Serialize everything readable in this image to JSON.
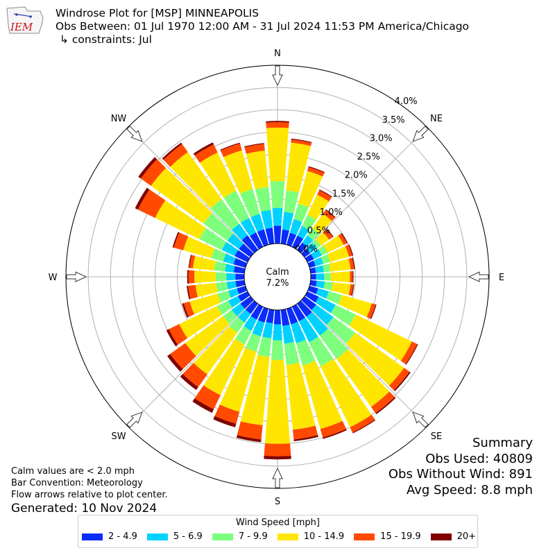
{
  "header": {
    "title": "Windrose Plot for [MSP] MINNEAPOLIS",
    "obs_between": "Obs Between: 01 Jul 1970 12:00 AM - 31 Jul 2024 11:53 PM America/Chicago",
    "constraints": "↳ constraints: Jul",
    "logo_text": "IEM"
  },
  "calm": {
    "label": "Calm",
    "value": "7.2%"
  },
  "compass": {
    "N": "N",
    "NE": "NE",
    "E": "E",
    "SE": "SE",
    "S": "S",
    "SW": "SW",
    "W": "W",
    "NW": "NW"
  },
  "notes": {
    "calm_note": "Calm values are < 2.0 mph",
    "bar_convention": "Bar Convention: Meteorology",
    "flow_note": "Flow arrows relative to plot center.",
    "generated": "Generated: 10 Nov 2024"
  },
  "summary": {
    "title": "Summary",
    "obs_used": "Obs Used: 40809",
    "obs_without_wind": "Obs Without Wind: 891",
    "avg_speed": "Avg Speed: 8.8 mph"
  },
  "chart_data": {
    "type": "windrose",
    "title": "Windrose Plot for [MSP] MINNEAPOLIS",
    "radial_ticks": [
      "0.0%",
      "0.5%",
      "1.0%",
      "1.5%",
      "2.0%",
      "2.5%",
      "3.0%",
      "3.5%",
      "4.0%"
    ],
    "radial_range": [
      0,
      4.0
    ],
    "grid": true,
    "legend_title": "Wind Speed [mph]",
    "legend_placement": "bottom",
    "bins": [
      {
        "label": "2 - 4.9",
        "color": "#0a2cf9"
      },
      {
        "label": "5 - 6.9",
        "color": "#00d2ff"
      },
      {
        "label": "7 - 9.9",
        "color": "#7dff7d"
      },
      {
        "label": "10 - 14.9",
        "color": "#ffe600"
      },
      {
        "label": "15 - 19.9",
        "color": "#ff4a00"
      },
      {
        "label": "20+",
        "color": "#800000"
      }
    ],
    "directions": [
      {
        "dir": 0,
        "cum": [
          0.4,
          0.8,
          1.4,
          2.6,
          2.72,
          2.75
        ]
      },
      {
        "dir": 10,
        "cum": [
          0.32,
          0.72,
          1.2,
          2.28,
          2.35,
          2.37
        ]
      },
      {
        "dir": 20,
        "cum": [
          0.28,
          0.6,
          0.96,
          1.72,
          1.81,
          1.83
        ]
      },
      {
        "dir": 30,
        "cum": [
          0.28,
          0.52,
          0.8,
          1.3,
          1.41,
          1.43
        ]
      },
      {
        "dir": 40,
        "cum": [
          0.2,
          0.4,
          0.6,
          1.0,
          1.1,
          1.12
        ]
      },
      {
        "dir": 50,
        "cum": [
          0.16,
          0.35,
          0.45,
          0.68,
          0.78,
          0.8
        ]
      },
      {
        "dir": 60,
        "cum": [
          0.16,
          0.36,
          0.5,
          0.9,
          0.98,
          1.0
        ]
      },
      {
        "dir": 70,
        "cum": [
          0.14,
          0.32,
          0.48,
          0.92,
          1.0,
          1.02
        ]
      },
      {
        "dir": 80,
        "cum": [
          0.12,
          0.3,
          0.45,
          0.9,
          0.98,
          1.0
        ]
      },
      {
        "dir": 90,
        "cum": [
          0.12,
          0.3,
          0.45,
          0.88,
          0.94,
          0.96
        ]
      },
      {
        "dir": 100,
        "cum": [
          0.14,
          0.32,
          0.5,
          0.9,
          0.96,
          0.98
        ]
      },
      {
        "dir": 110,
        "cum": [
          0.2,
          0.45,
          0.75,
          1.45,
          1.54,
          1.56
        ]
      },
      {
        "dir": 120,
        "cum": [
          0.28,
          0.7,
          1.2,
          2.6,
          2.73,
          2.75
        ]
      },
      {
        "dir": 130,
        "cum": [
          0.32,
          0.8,
          1.4,
          2.75,
          2.9,
          2.93
        ]
      },
      {
        "dir": 140,
        "cum": [
          0.36,
          0.88,
          1.52,
          2.85,
          3.02,
          3.05
        ]
      },
      {
        "dir": 150,
        "cum": [
          0.36,
          0.88,
          1.48,
          3.0,
          3.13,
          3.15
        ]
      },
      {
        "dir": 160,
        "cum": [
          0.36,
          0.8,
          1.32,
          2.8,
          3.0,
          3.03
        ]
      },
      {
        "dir": 170,
        "cum": [
          0.36,
          0.76,
          1.24,
          2.7,
          2.92,
          2.96
        ]
      },
      {
        "dir": 180,
        "cum": [
          0.32,
          0.68,
          1.12,
          3.0,
          3.28,
          3.35
        ]
      },
      {
        "dir": 190,
        "cum": [
          0.3,
          0.64,
          1.06,
          2.6,
          2.92,
          2.98
        ]
      },
      {
        "dir": 200,
        "cum": [
          0.32,
          0.64,
          1.0,
          2.4,
          2.68,
          2.76
        ]
      },
      {
        "dir": 210,
        "cum": [
          0.32,
          0.6,
          0.94,
          2.2,
          2.55,
          2.64
        ]
      },
      {
        "dir": 220,
        "cum": [
          0.28,
          0.52,
          0.8,
          1.95,
          2.3,
          2.38
        ]
      },
      {
        "dir": 230,
        "cum": [
          0.28,
          0.52,
          0.76,
          1.8,
          2.22,
          2.3
        ]
      },
      {
        "dir": 240,
        "cum": [
          0.24,
          0.48,
          0.76,
          1.7,
          1.96,
          2.02
        ]
      },
      {
        "dir": 250,
        "cum": [
          0.2,
          0.4,
          0.65,
          1.3,
          1.44,
          1.48
        ]
      },
      {
        "dir": 260,
        "cum": [
          0.2,
          0.4,
          0.64,
          1.1,
          1.27,
          1.3
        ]
      },
      {
        "dir": 270,
        "cum": [
          0.2,
          0.4,
          0.64,
          1.12,
          1.25,
          1.28
        ]
      },
      {
        "dir": 280,
        "cum": [
          0.24,
          0.44,
          0.68,
          1.16,
          1.24,
          1.26
        ]
      },
      {
        "dir": 290,
        "cum": [
          0.28,
          0.52,
          0.8,
          1.45,
          1.67,
          1.7
        ]
      },
      {
        "dir": 300,
        "cum": [
          0.32,
          0.64,
          1.2,
          2.3,
          2.73,
          2.8
        ]
      },
      {
        "dir": 310,
        "cum": [
          0.32,
          0.64,
          1.3,
          2.75,
          3.03,
          3.1
        ]
      },
      {
        "dir": 320,
        "cum": [
          0.4,
          0.72,
          1.4,
          2.7,
          2.92,
          2.96
        ]
      },
      {
        "dir": 330,
        "cum": [
          0.36,
          0.72,
          1.4,
          2.35,
          2.55,
          2.6
        ]
      },
      {
        "dir": 340,
        "cum": [
          0.36,
          0.72,
          1.3,
          2.2,
          2.36,
          2.38
        ]
      },
      {
        "dir": 350,
        "cum": [
          0.36,
          0.76,
          1.28,
          2.1,
          2.25,
          2.27
        ]
      }
    ]
  }
}
